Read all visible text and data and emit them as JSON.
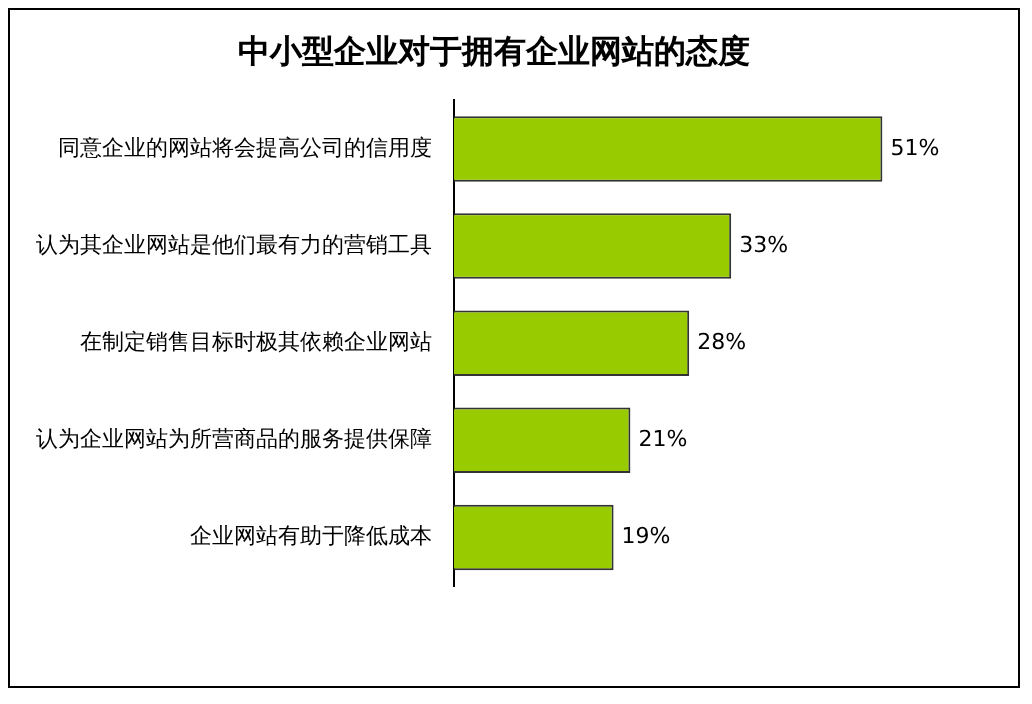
{
  "chart_data": {
    "type": "bar",
    "orientation": "horizontal",
    "title": "中小型企业对于拥有企业网站的态度",
    "categories": [
      "同意企业的网站将会提高公司的信用度",
      "认为其企业网站是他们最有力的营销工具",
      "在制定销售目标时极其依赖企业网站",
      "认为企业网站为所营商品的服务提供保障",
      "企业网站有助于降低成本"
    ],
    "values": [
      51,
      33,
      28,
      21,
      19
    ],
    "value_labels": [
      "51%",
      "33%",
      "28%",
      "21%",
      "19%"
    ],
    "color": "#99cc00",
    "grid": false,
    "legend": false
  }
}
